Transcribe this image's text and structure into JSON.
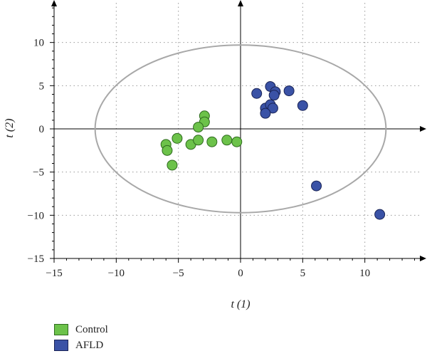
{
  "chart_data": {
    "type": "scatter",
    "title": "",
    "xlabel": "t (1)",
    "ylabel": "t (2)",
    "xlim": [
      -15,
      15
    ],
    "ylim": [
      -15,
      15
    ],
    "xticks": [
      -15,
      -10,
      -5,
      0,
      5,
      10
    ],
    "yticks": [
      -15,
      -10,
      -5,
      0,
      5,
      10
    ],
    "grid": "dotted",
    "legend_position": "bottom-left",
    "ellipse": {
      "center": [
        0,
        0
      ],
      "rx": 11.7,
      "ry": 9.7
    },
    "series": [
      {
        "name": "Control",
        "color": "#6cc24a",
        "edge": "#2f6b1f",
        "points": [
          [
            -2.9,
            1.5
          ],
          [
            -2.9,
            0.8
          ],
          [
            -3.4,
            0.2
          ],
          [
            -5.1,
            -1.1
          ],
          [
            -6.0,
            -1.8
          ],
          [
            -5.9,
            -2.5
          ],
          [
            -4.0,
            -1.8
          ],
          [
            -3.4,
            -1.3
          ],
          [
            -2.3,
            -1.5
          ],
          [
            -1.1,
            -1.3
          ],
          [
            -0.3,
            -1.5
          ],
          [
            -5.5,
            -4.2
          ]
        ]
      },
      {
        "name": "AFLD",
        "color": "#3a52a6",
        "edge": "#1a2456",
        "points": [
          [
            1.3,
            4.1
          ],
          [
            2.4,
            4.9
          ],
          [
            2.8,
            4.3
          ],
          [
            2.7,
            3.9
          ],
          [
            3.9,
            4.4
          ],
          [
            2.0,
            2.4
          ],
          [
            2.4,
            2.8
          ],
          [
            2.6,
            2.4
          ],
          [
            2.0,
            1.8
          ],
          [
            5.0,
            2.7
          ],
          [
            6.1,
            -6.6
          ],
          [
            11.2,
            -9.9
          ]
        ]
      }
    ]
  }
}
